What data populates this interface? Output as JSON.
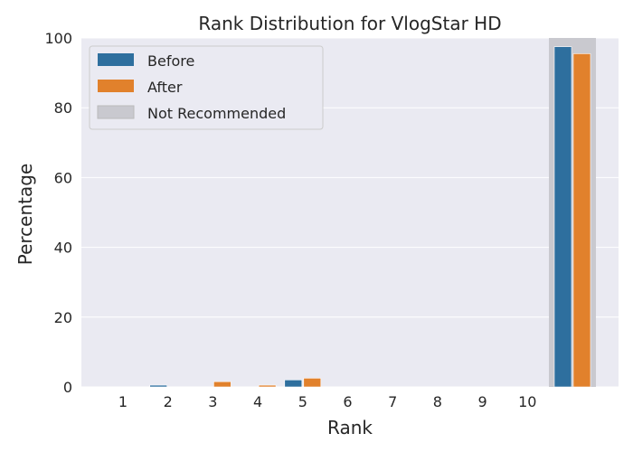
{
  "chart_data": {
    "type": "bar",
    "title": "Rank Distribution for VlogStar HD",
    "xlabel": "Rank",
    "ylabel": "Percentage",
    "ylim": [
      0,
      100
    ],
    "yticks": [
      0,
      20,
      40,
      60,
      80,
      100
    ],
    "categories": [
      "1",
      "2",
      "3",
      "4",
      "5",
      "6",
      "7",
      "8",
      "9",
      "10",
      ""
    ],
    "highlighted_category_index": 10,
    "grid": true,
    "legend_position": "top-left",
    "series": [
      {
        "name": "Before",
        "color": "#2e6f9e",
        "values": [
          0,
          0.5,
          0,
          0,
          2.0,
          0,
          0,
          0,
          0,
          0,
          97.5
        ]
      },
      {
        "name": "After",
        "color": "#e1812c",
        "values": [
          0,
          0,
          1.5,
          0.5,
          2.5,
          0,
          0,
          0,
          0,
          0,
          95.5
        ]
      }
    ],
    "legend": [
      {
        "label": "Before",
        "color": "#2e6f9e"
      },
      {
        "label": "After",
        "color": "#e1812c"
      },
      {
        "label": "Not Recommended",
        "color": "#c9c9cf"
      }
    ]
  }
}
